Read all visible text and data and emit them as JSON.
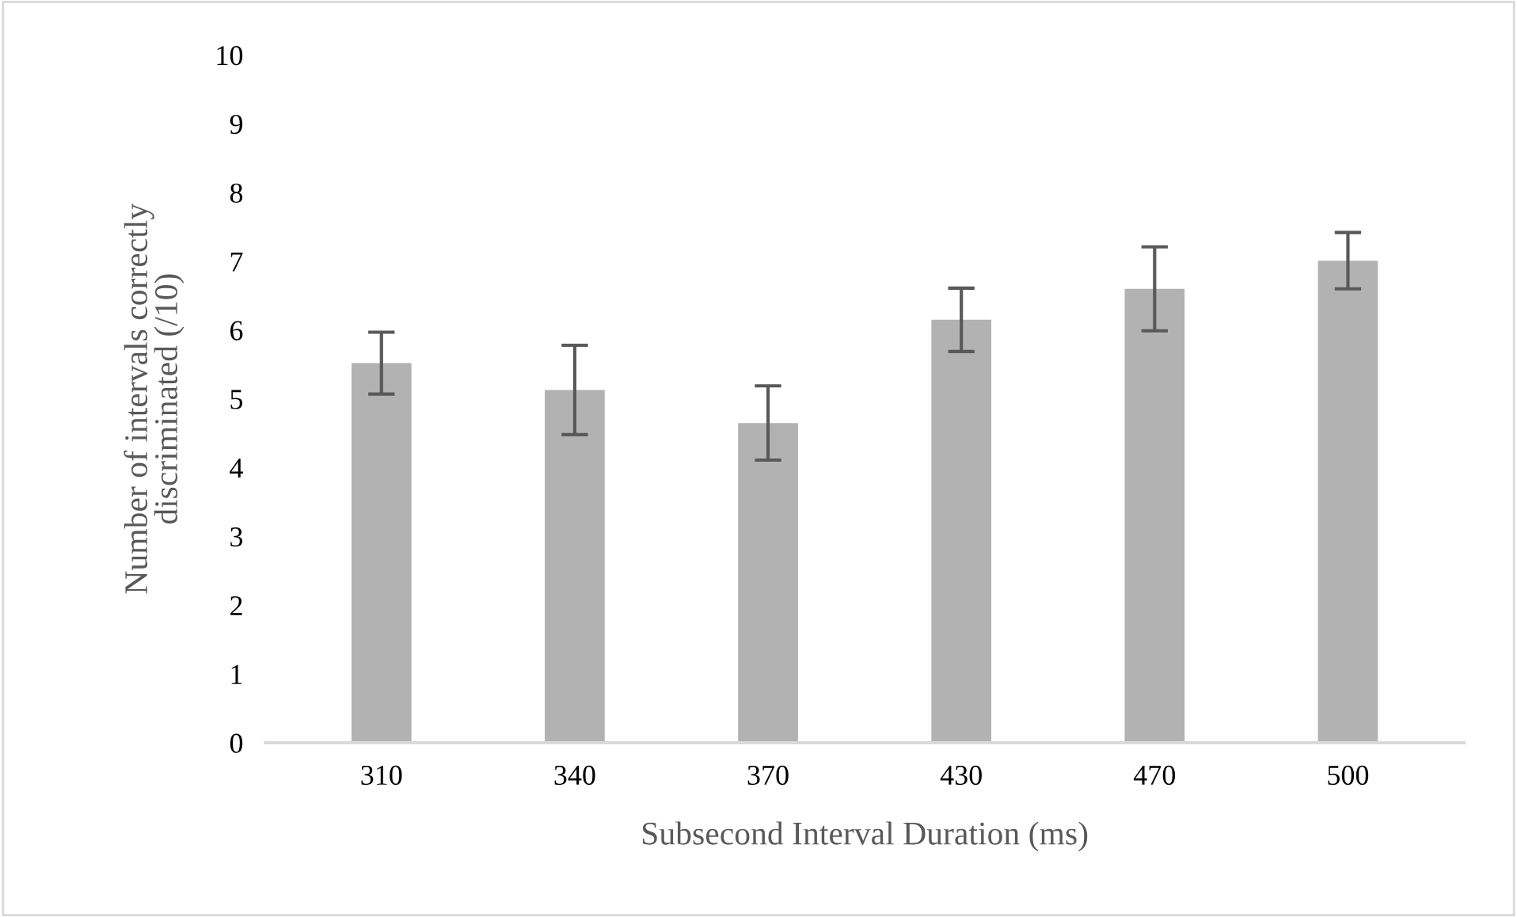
{
  "chart_data": {
    "type": "bar",
    "xlabel": "Subsecond Interval Duration (ms)",
    "ylabel": "Number of intervals correctly\ndiscriminated (/10)",
    "categories": [
      "310",
      "340",
      "370",
      "430",
      "470",
      "500"
    ],
    "values": [
      5.52,
      5.13,
      4.65,
      6.15,
      6.6,
      7.01
    ],
    "errors": [
      0.45,
      0.65,
      0.54,
      0.46,
      0.61,
      0.41
    ],
    "color": "#b2b2b2",
    "ylim": [
      0,
      10
    ],
    "yticks": [
      0,
      1,
      2,
      3,
      4,
      5,
      6,
      7,
      8,
      9,
      10
    ],
    "grid": false
  }
}
